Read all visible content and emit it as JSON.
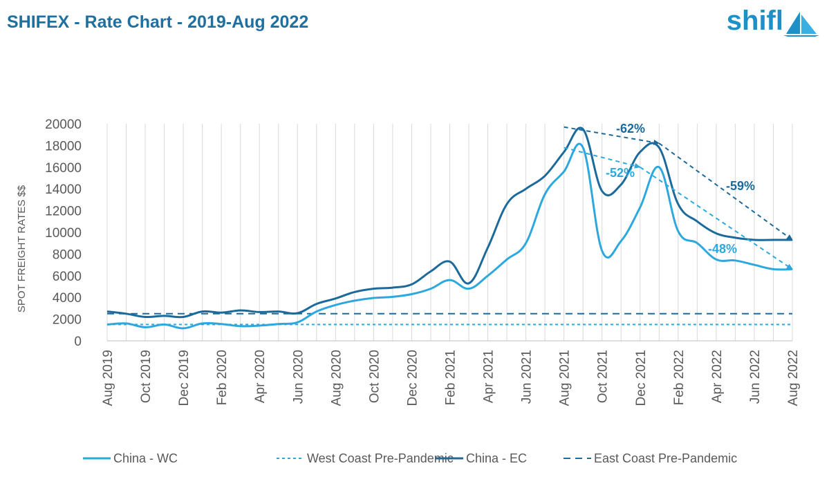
{
  "header": {
    "title": "SHIFEX - Rate Chart - 2019-Aug 2022",
    "logo_text": "shifl",
    "logo_icon": "sailboat-icon"
  },
  "colors": {
    "wc": "#2da8de",
    "ec": "#1b6a9b",
    "grid": "#d9d9d9",
    "axis_text": "#595959"
  },
  "chart_data": {
    "type": "line",
    "ylabel": "SPOT FREIGHT RATES $$",
    "xlabel": "",
    "ylim": [
      0,
      20000
    ],
    "yticks": [
      0,
      2000,
      4000,
      6000,
      8000,
      10000,
      12000,
      14000,
      16000,
      18000,
      20000
    ],
    "x": [
      "Aug 2019",
      "Sep 2019",
      "Oct 2019",
      "Nov 2019",
      "Dec 2019",
      "Jan 2020",
      "Feb 2020",
      "Mar 2020",
      "Apr 2020",
      "May 2020",
      "Jun 2020",
      "Jul 2020",
      "Aug 2020",
      "Sep 2020",
      "Oct 2020",
      "Nov 2020",
      "Dec 2020",
      "Jan 2021",
      "Feb 2021",
      "Mar 2021",
      "Apr 2021",
      "May 2021",
      "Jun 2021",
      "Jul 2021",
      "Aug 2021",
      "Sep 2021",
      "Oct 2021",
      "Nov 2021",
      "Dec 2021",
      "Jan 2022",
      "Feb 2022",
      "Mar 2022",
      "Apr 2022",
      "May 2022",
      "Jun 2022",
      "Jul 2022",
      "Aug 2022"
    ],
    "xtick_labels": [
      "Aug 2019",
      "Oct 2019",
      "Dec 2019",
      "Feb 2020",
      "Apr 2020",
      "Jun 2020",
      "Aug 2020",
      "Oct 2020",
      "Dec 2020",
      "Feb 2021",
      "Apr 2021",
      "Jun 2021",
      "Aug 2021",
      "Oct 2021",
      "Dec 2021",
      "Feb 2022",
      "Apr 2022",
      "Jun 2022",
      "Aug 2022"
    ],
    "grid": "vertical",
    "legend_position": "bottom",
    "series": [
      {
        "name": "China - WC",
        "style": "solid",
        "color": "#2da8de",
        "values": [
          1500,
          1600,
          1250,
          1500,
          1150,
          1600,
          1550,
          1350,
          1400,
          1550,
          1700,
          2700,
          3300,
          3700,
          3950,
          4050,
          4300,
          4800,
          5600,
          4800,
          6000,
          7500,
          9000,
          13500,
          15600,
          17800,
          8300,
          9200,
          12300,
          16000,
          10100,
          9000,
          7500,
          7400,
          7000,
          6600,
          6600
        ]
      },
      {
        "name": "West Coast Pre-Pandemic",
        "style": "dotted",
        "color": "#2da8de",
        "values": [
          1500,
          1500,
          1500,
          1500,
          1500,
          1500,
          1500,
          1500,
          1500,
          1500,
          1500,
          1500,
          1500,
          1500,
          1500,
          1500,
          1500,
          1500,
          1500,
          1500,
          1500,
          1500,
          1500,
          1500,
          1500,
          1500,
          1500,
          1500,
          1500,
          1500,
          1500,
          1500,
          1500,
          1500,
          1500,
          1500,
          1500
        ]
      },
      {
        "name": "China - EC",
        "style": "solid",
        "color": "#1b6a9b",
        "values": [
          2700,
          2500,
          2200,
          2300,
          2200,
          2700,
          2600,
          2800,
          2650,
          2700,
          2550,
          3400,
          3900,
          4500,
          4800,
          4900,
          5200,
          6400,
          7300,
          5300,
          8600,
          12600,
          14000,
          15200,
          17400,
          19500,
          13800,
          14400,
          17400,
          17800,
          12600,
          11000,
          9900,
          9500,
          9300,
          9300,
          9300
        ]
      },
      {
        "name": "East Coast Pre-Pandemic",
        "style": "dashed",
        "color": "#1b6a9b",
        "values": [
          2500,
          2500,
          2500,
          2500,
          2500,
          2500,
          2500,
          2500,
          2500,
          2500,
          2500,
          2500,
          2500,
          2500,
          2500,
          2500,
          2500,
          2500,
          2500,
          2500,
          2500,
          2500,
          2500,
          2500,
          2500,
          2500,
          2500,
          2500,
          2500,
          2500,
          2500,
          2500,
          2500,
          2500,
          2500,
          2500,
          2500
        ]
      }
    ],
    "annotations": [
      {
        "text": "-62%",
        "from": [
          "Aug 2021",
          19700
        ],
        "to": [
          "Jan 2022",
          18200
        ],
        "color": "#1b6a9b"
      },
      {
        "text": "-59%",
        "from": [
          "Jan 2022",
          18200
        ],
        "to": [
          "Aug 2022",
          9300
        ],
        "color": "#1b6a9b"
      },
      {
        "text": "-52%",
        "from": [
          "Aug 2021",
          17800
        ],
        "to": [
          "Dec 2021",
          16000
        ],
        "color": "#2da8de"
      },
      {
        "text": "-48%",
        "from": [
          "Dec 2021",
          16000
        ],
        "to": [
          "Aug 2022",
          6600
        ],
        "color": "#2da8de"
      }
    ]
  }
}
